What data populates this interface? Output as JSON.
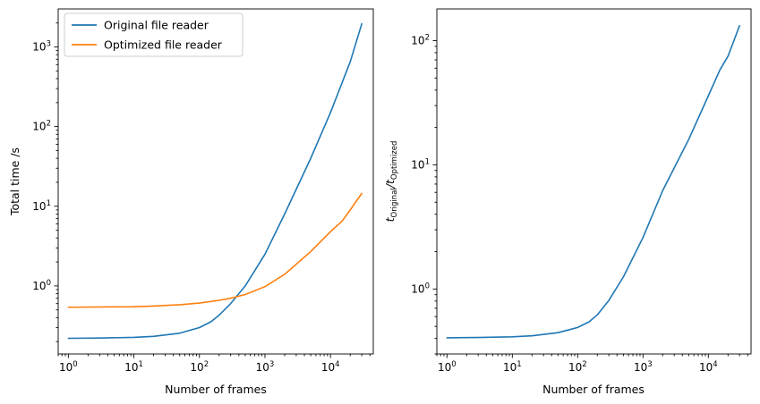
{
  "chart_data": [
    {
      "type": "line",
      "xlabel": "Number of frames",
      "ylabel": "Total time /s",
      "xscale": "log",
      "yscale": "log",
      "xlim": [
        0.7,
        45000
      ],
      "ylim": [
        0.14,
        3000
      ],
      "xticks": [
        {
          "value": 1,
          "base": "10",
          "exp": "0"
        },
        {
          "value": 10,
          "base": "10",
          "exp": "1"
        },
        {
          "value": 100,
          "base": "10",
          "exp": "2"
        },
        {
          "value": 1000,
          "base": "10",
          "exp": "3"
        },
        {
          "value": 10000,
          "base": "10",
          "exp": "4"
        }
      ],
      "yticks": [
        {
          "value": 1,
          "base": "10",
          "exp": "0"
        },
        {
          "value": 10,
          "base": "10",
          "exp": "1"
        },
        {
          "value": 100,
          "base": "10",
          "exp": "2"
        },
        {
          "value": 1000,
          "base": "10",
          "exp": "3"
        }
      ],
      "legend": "upper-left",
      "grid": false,
      "series": [
        {
          "name": "Original file reader",
          "color": "#1f77b4",
          "x": [
            1,
            3,
            10,
            20,
            50,
            100,
            150,
            200,
            300,
            500,
            1000,
            2000,
            5000,
            10000,
            20000,
            30000
          ],
          "y": [
            0.22,
            0.222,
            0.226,
            0.233,
            0.255,
            0.3,
            0.355,
            0.43,
            0.6,
            1.0,
            2.5,
            8.0,
            40,
            150,
            650,
            1950
          ]
        },
        {
          "name": "Optimized file reader",
          "color": "#ff7f0e",
          "x": [
            1,
            10,
            20,
            50,
            100,
            200,
            300,
            500,
            1000,
            2000,
            5000,
            10000,
            15000,
            20000,
            30000
          ],
          "y": [
            0.54,
            0.548,
            0.558,
            0.58,
            0.61,
            0.66,
            0.7,
            0.78,
            0.98,
            1.4,
            2.7,
            4.8,
            6.5,
            9.0,
            14.5
          ]
        }
      ]
    },
    {
      "type": "line",
      "xlabel": "Number of frames",
      "ylabel_main": "t",
      "ylabel_sub1": "Original",
      "ylabel_sep": "/t",
      "ylabel_sub2": "Optimized",
      "xscale": "log",
      "yscale": "log",
      "xlim": [
        0.7,
        45000
      ],
      "ylim": [
        0.3,
        180
      ],
      "xticks": [
        {
          "value": 1,
          "base": "10",
          "exp": "0"
        },
        {
          "value": 10,
          "base": "10",
          "exp": "1"
        },
        {
          "value": 100,
          "base": "10",
          "exp": "2"
        },
        {
          "value": 1000,
          "base": "10",
          "exp": "3"
        },
        {
          "value": 10000,
          "base": "10",
          "exp": "4"
        }
      ],
      "yticks": [
        {
          "value": 1,
          "base": "10",
          "exp": "0"
        },
        {
          "value": 10,
          "base": "10",
          "exp": "1"
        },
        {
          "value": 100,
          "base": "10",
          "exp": "2"
        }
      ],
      "grid": false,
      "series": [
        {
          "color": "#1f77b4",
          "x": [
            1,
            3,
            10,
            20,
            50,
            100,
            150,
            200,
            300,
            500,
            1000,
            2000,
            5000,
            10000,
            15000,
            20000,
            30000
          ],
          "y": [
            0.405,
            0.407,
            0.412,
            0.42,
            0.445,
            0.49,
            0.545,
            0.62,
            0.81,
            1.25,
            2.6,
            6.2,
            16,
            36,
            58,
            75,
            132
          ]
        }
      ]
    }
  ]
}
